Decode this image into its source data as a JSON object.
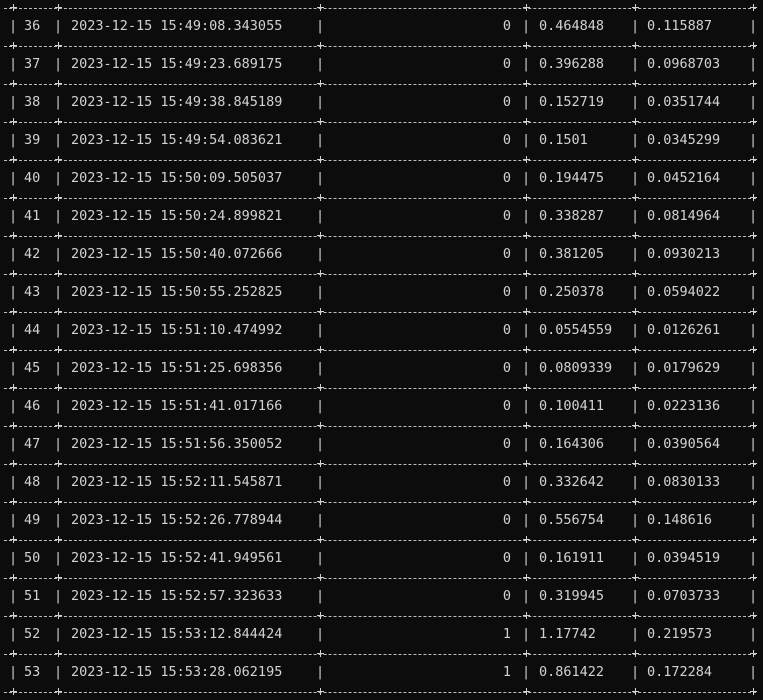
{
  "terminal": {
    "background": "#0c0c0c",
    "foreground": "#d2d2d2",
    "column_separator": "|",
    "rows": [
      {
        "id": "36",
        "timestamp": "2023-12-15 15:49:08.343055",
        "flag": "0",
        "value1": "0.464848",
        "value2": "0.115887"
      },
      {
        "id": "37",
        "timestamp": "2023-12-15 15:49:23.689175",
        "flag": "0",
        "value1": "0.396288",
        "value2": "0.0968703"
      },
      {
        "id": "38",
        "timestamp": "2023-12-15 15:49:38.845189",
        "flag": "0",
        "value1": "0.152719",
        "value2": "0.0351744"
      },
      {
        "id": "39",
        "timestamp": "2023-12-15 15:49:54.083621",
        "flag": "0",
        "value1": "0.1501",
        "value2": "0.0345299"
      },
      {
        "id": "40",
        "timestamp": "2023-12-15 15:50:09.505037",
        "flag": "0",
        "value1": "0.194475",
        "value2": "0.0452164"
      },
      {
        "id": "41",
        "timestamp": "2023-12-15 15:50:24.899821",
        "flag": "0",
        "value1": "0.338287",
        "value2": "0.0814964"
      },
      {
        "id": "42",
        "timestamp": "2023-12-15 15:50:40.072666",
        "flag": "0",
        "value1": "0.381205",
        "value2": "0.0930213"
      },
      {
        "id": "43",
        "timestamp": "2023-12-15 15:50:55.252825",
        "flag": "0",
        "value1": "0.250378",
        "value2": "0.0594022"
      },
      {
        "id": "44",
        "timestamp": "2023-12-15 15:51:10.474992",
        "flag": "0",
        "value1": "0.0554559",
        "value2": "0.0126261"
      },
      {
        "id": "45",
        "timestamp": "2023-12-15 15:51:25.698356",
        "flag": "0",
        "value1": "0.0809339",
        "value2": "0.0179629"
      },
      {
        "id": "46",
        "timestamp": "2023-12-15 15:51:41.017166",
        "flag": "0",
        "value1": "0.100411",
        "value2": "0.0223136"
      },
      {
        "id": "47",
        "timestamp": "2023-12-15 15:51:56.350052",
        "flag": "0",
        "value1": "0.164306",
        "value2": "0.0390564"
      },
      {
        "id": "48",
        "timestamp": "2023-12-15 15:52:11.545871",
        "flag": "0",
        "value1": "0.332642",
        "value2": "0.0830133"
      },
      {
        "id": "49",
        "timestamp": "2023-12-15 15:52:26.778944",
        "flag": "0",
        "value1": "0.556754",
        "value2": "0.148616"
      },
      {
        "id": "50",
        "timestamp": "2023-12-15 15:52:41.949561",
        "flag": "0",
        "value1": "0.161911",
        "value2": "0.0394519"
      },
      {
        "id": "51",
        "timestamp": "2023-12-15 15:52:57.323633",
        "flag": "0",
        "value1": "0.319945",
        "value2": "0.0703733"
      },
      {
        "id": "52",
        "timestamp": "2023-12-15 15:53:12.844424",
        "flag": "1",
        "value1": "1.17742",
        "value2": "0.219573"
      },
      {
        "id": "53",
        "timestamp": "2023-12-15 15:53:28.062195",
        "flag": "1",
        "value1": "0.861422",
        "value2": "0.172284"
      }
    ]
  }
}
